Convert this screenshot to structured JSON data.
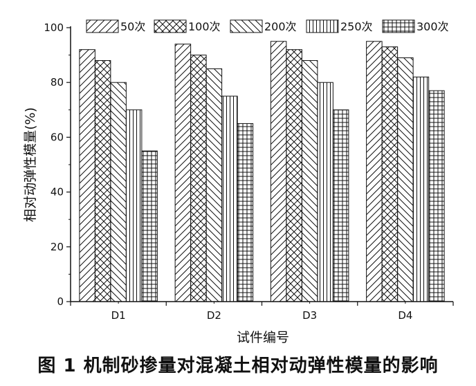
{
  "caption": "图 1  机制砂掺量对混凝土相对动弹性模量的影响",
  "chart_data": {
    "type": "bar",
    "categories": [
      "D1",
      "D2",
      "D3",
      "D4"
    ],
    "xlabel": "试件编号",
    "ylabel": "相对动弹性模量(%)",
    "ylim": [
      0,
      100
    ],
    "yticks": [
      0,
      20,
      40,
      60,
      80,
      100
    ],
    "legend_position": "top",
    "grid": false,
    "series": [
      {
        "name": "50次",
        "pattern": "diag-right",
        "values": [
          92,
          94,
          95,
          95
        ]
      },
      {
        "name": "100次",
        "pattern": "crosshatch",
        "values": [
          88,
          90,
          92,
          93
        ]
      },
      {
        "name": "200次",
        "pattern": "diag-left",
        "values": [
          80,
          85,
          88,
          89
        ]
      },
      {
        "name": "250次",
        "pattern": "vertical",
        "values": [
          70,
          75,
          80,
          82
        ]
      },
      {
        "name": "300次",
        "pattern": "grid",
        "values": [
          55,
          65,
          70,
          77
        ]
      }
    ]
  }
}
